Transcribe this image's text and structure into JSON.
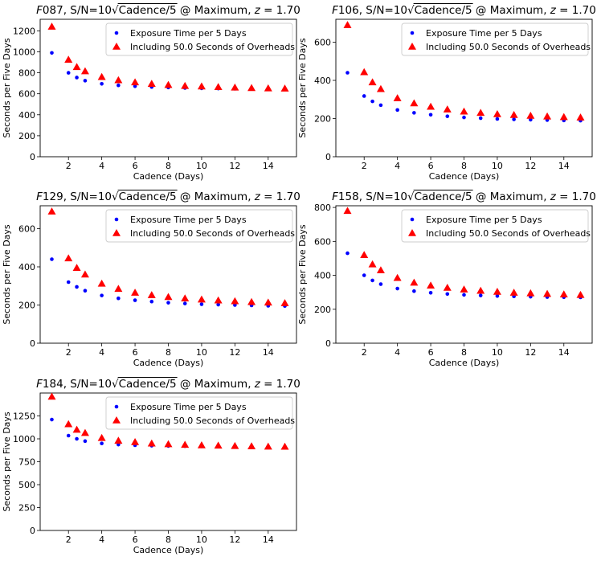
{
  "colors": {
    "exposure": "#0000ff",
    "overheads": "#ff0000",
    "axis": "#000000",
    "legend_border": "#cccccc"
  },
  "chart_data": [
    {
      "type": "scatter",
      "filter": "F087",
      "title": "F087, S/N=10√Cadence/5 @ Maximum, z = 1.70",
      "title_parts": {
        "filter": "F087",
        "sn": ", S/N=10",
        "radicand": "Cadence/5",
        "tail": " @ Maximum, ",
        "z": "z = 1.70"
      },
      "xlabel": "Cadence (Days)",
      "ylabel": "Seconds per Five Days",
      "xlim": [
        0.3,
        15.7
      ],
      "ylim": [
        0,
        1310
      ],
      "xticks": [
        2,
        4,
        6,
        8,
        10,
        12,
        14
      ],
      "yticks": [
        0,
        200,
        400,
        600,
        800,
        1000,
        1200
      ],
      "legend_position": "top-right",
      "x": [
        1,
        2,
        2.5,
        3,
        4,
        5,
        6,
        7,
        8,
        9,
        10,
        11,
        12,
        13,
        14,
        15
      ],
      "series": [
        {
          "name": "Exposure Time per 5 Days",
          "marker": "circle",
          "values": [
            990,
            800,
            755,
            725,
            695,
            680,
            672,
            665,
            660,
            655,
            652,
            650,
            648,
            646,
            644,
            642
          ]
        },
        {
          "name": "Including 50.0 Seconds of Overheads",
          "marker": "triangle",
          "values": [
            1240,
            925,
            855,
            815,
            760,
            730,
            710,
            695,
            685,
            675,
            670,
            665,
            660,
            655,
            652,
            650
          ]
        }
      ]
    },
    {
      "type": "scatter",
      "filter": "F106",
      "title": "F106, S/N=10√Cadence/5 @ Maximum, z = 1.70",
      "title_parts": {
        "filter": "F106",
        "sn": ", S/N=10",
        "radicand": "Cadence/5",
        "tail": " @ Maximum, ",
        "z": "z = 1.70"
      },
      "xlabel": "Cadence (Days)",
      "ylabel": "Seconds per Five Days",
      "xlim": [
        0.3,
        15.7
      ],
      "ylim": [
        0,
        720
      ],
      "xticks": [
        2,
        4,
        6,
        8,
        10,
        12,
        14
      ],
      "yticks": [
        0,
        200,
        400,
        600
      ],
      "legend_position": "top-right",
      "x": [
        1,
        2,
        2.5,
        3,
        4,
        5,
        6,
        7,
        8,
        9,
        10,
        11,
        12,
        13,
        14,
        15
      ],
      "series": [
        {
          "name": "Exposure Time per 5 Days",
          "marker": "circle",
          "values": [
            440,
            318,
            290,
            270,
            245,
            230,
            220,
            212,
            206,
            202,
            198,
            196,
            194,
            192,
            190,
            189
          ]
        },
        {
          "name": "Including 50.0 Seconds of Overheads",
          "marker": "triangle",
          "values": [
            690,
            443,
            390,
            355,
            307,
            280,
            262,
            248,
            237,
            230,
            223,
            219,
            215,
            211,
            208,
            206
          ]
        }
      ]
    },
    {
      "type": "scatter",
      "filter": "F129",
      "title": "F129, S/N=10√Cadence/5 @ Maximum, z = 1.70",
      "title_parts": {
        "filter": "F129",
        "sn": ", S/N=10",
        "radicand": "Cadence/5",
        "tail": " @ Maximum, ",
        "z": "z = 1.70"
      },
      "xlabel": "Cadence (Days)",
      "ylabel": "Seconds per Five Days",
      "xlim": [
        0.3,
        15.7
      ],
      "ylim": [
        0,
        720
      ],
      "xticks": [
        2,
        4,
        6,
        8,
        10,
        12,
        14
      ],
      "yticks": [
        0,
        200,
        400,
        600
      ],
      "legend_position": "top-right",
      "x": [
        1,
        2,
        2.5,
        3,
        4,
        5,
        6,
        7,
        8,
        9,
        10,
        11,
        12,
        13,
        14,
        15
      ],
      "series": [
        {
          "name": "Exposure Time per 5 Days",
          "marker": "circle",
          "values": [
            440,
            320,
            295,
            275,
            250,
            235,
            225,
            218,
            212,
            208,
            204,
            202,
            200,
            198,
            196,
            195
          ]
        },
        {
          "name": "Including 50.0 Seconds of Overheads",
          "marker": "triangle",
          "values": [
            690,
            445,
            395,
            360,
            312,
            285,
            265,
            252,
            242,
            235,
            229,
            224,
            220,
            216,
            213,
            210
          ]
        }
      ]
    },
    {
      "type": "scatter",
      "filter": "F158",
      "title": "F158, S/N=10√Cadence/5 @ Maximum, z = 1.70",
      "title_parts": {
        "filter": "F158",
        "sn": ", S/N=10",
        "radicand": "Cadence/5",
        "tail": " @ Maximum, ",
        "z": "z = 1.70"
      },
      "xlabel": "Cadence (Days)",
      "ylabel": "Seconds per Five Days",
      "xlim": [
        0.3,
        15.7
      ],
      "ylim": [
        0,
        810
      ],
      "xticks": [
        2,
        4,
        6,
        8,
        10,
        12,
        14
      ],
      "yticks": [
        0,
        200,
        400,
        600,
        800
      ],
      "legend_position": "top-right",
      "x": [
        1,
        2,
        2.5,
        3,
        4,
        5,
        6,
        7,
        8,
        9,
        10,
        11,
        12,
        13,
        14,
        15
      ],
      "series": [
        {
          "name": "Exposure Time per 5 Days",
          "marker": "circle",
          "values": [
            530,
            400,
            370,
            348,
            322,
            307,
            297,
            290,
            285,
            281,
            278,
            276,
            274,
            272,
            271,
            270
          ]
        },
        {
          "name": "Including 50.0 Seconds of Overheads",
          "marker": "triangle",
          "values": [
            780,
            520,
            465,
            430,
            385,
            357,
            340,
            327,
            317,
            309,
            303,
            298,
            294,
            291,
            288,
            285
          ]
        }
      ]
    },
    {
      "type": "scatter",
      "filter": "F184",
      "title": "F184, S/N=10√Cadence/5 @ Maximum, z = 1.70",
      "title_parts": {
        "filter": "F184",
        "sn": ", S/N=10",
        "radicand": "Cadence/5",
        "tail": " @ Maximum, ",
        "z": "z = 1.70"
      },
      "xlabel": "Cadence (Days)",
      "ylabel": "Seconds per Five Days",
      "xlim": [
        0.3,
        15.7
      ],
      "ylim": [
        0,
        1500
      ],
      "xticks": [
        2,
        4,
        6,
        8,
        10,
        12,
        14
      ],
      "yticks": [
        0,
        250,
        500,
        750,
        1000,
        1250
      ],
      "legend_position": "top-right",
      "x": [
        1,
        2,
        2.5,
        3,
        4,
        5,
        6,
        7,
        8,
        9,
        10,
        11,
        12,
        13,
        14,
        15
      ],
      "series": [
        {
          "name": "Exposure Time per 5 Days",
          "marker": "circle",
          "values": [
            1210,
            1035,
            1000,
            975,
            950,
            937,
            930,
            925,
            922,
            920,
            918,
            916,
            915,
            914,
            913,
            912
          ]
        },
        {
          "name": "Including 50.0 Seconds of Overheads",
          "marker": "triangle",
          "values": [
            1460,
            1160,
            1100,
            1065,
            1010,
            980,
            965,
            950,
            942,
            935,
            930,
            926,
            922,
            919,
            916,
            914
          ]
        }
      ]
    }
  ]
}
